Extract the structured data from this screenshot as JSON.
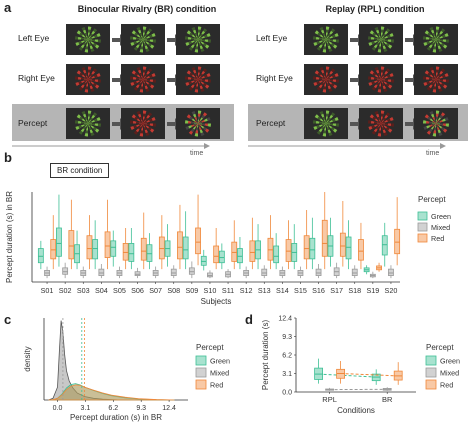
{
  "panel_a": {
    "label": "a",
    "br_title": "Binocular Rivalry (BR) condition",
    "rpl_title": "Replay (RPL) condition",
    "rows": [
      "Left Eye",
      "Right Eye",
      "Percept"
    ],
    "time_label": "time"
  },
  "panel_b": {
    "label": "b",
    "condition_box": "BR condition"
  },
  "panel_c": {
    "label": "c"
  },
  "panel_d": {
    "label": "d"
  },
  "colors": {
    "green": "#3dbf95",
    "mixed": "#9a9a9a",
    "red": "#f0883a",
    "band": "#b5b5b5"
  },
  "chart_data": [
    {
      "type": "box",
      "id": "b",
      "title": "",
      "xlabel": "Subjects",
      "ylabel": "Percept duration (s) in BR",
      "ylim": [
        0,
        12.4
      ],
      "yticks": [
        0,
        3.1,
        6.2,
        9.3,
        12.4
      ],
      "categories": [
        "S01",
        "S02",
        "S03",
        "S04",
        "S05",
        "S06",
        "S07",
        "S08",
        "S09",
        "S10",
        "S11",
        "S12",
        "S13",
        "S14",
        "S15",
        "S16",
        "S17",
        "S18",
        "S19",
        "S20"
      ],
      "legend": {
        "title": "Percept",
        "items": [
          "Green",
          "Mixed",
          "Red"
        ]
      },
      "series": [
        {
          "name": "Green",
          "boxes": [
            [
              1.0,
              1.5,
              2.0,
              2.6,
              3.2
            ],
            [
              1.2,
              2.0,
              3.0,
              4.2,
              6.8
            ],
            [
              1.0,
              1.5,
              2.2,
              2.9,
              4.0
            ],
            [
              1.0,
              1.8,
              2.6,
              3.3,
              4.8
            ],
            [
              1.2,
              2.0,
              2.7,
              3.2,
              4.0
            ],
            [
              1.0,
              1.6,
              2.2,
              3.0,
              4.2
            ],
            [
              1.0,
              1.6,
              2.2,
              2.9,
              3.8
            ],
            [
              1.2,
              2.0,
              2.6,
              3.2,
              4.5
            ],
            [
              1.0,
              1.8,
              2.5,
              3.5,
              5.5
            ],
            [
              0.9,
              1.3,
              1.6,
              2.0,
              2.5
            ],
            [
              1.0,
              1.5,
              1.9,
              2.4,
              3.0
            ],
            [
              1.0,
              1.5,
              2.0,
              2.6,
              3.5
            ],
            [
              1.0,
              1.8,
              2.5,
              3.2,
              4.5
            ],
            [
              1.0,
              1.5,
              2.0,
              2.8,
              3.8
            ],
            [
              1.0,
              1.6,
              2.3,
              3.0,
              4.5
            ],
            [
              1.0,
              1.8,
              2.5,
              3.4,
              5.0
            ],
            [
              1.2,
              2.0,
              2.8,
              3.6,
              5.0
            ],
            [
              1.0,
              1.8,
              2.7,
              3.5,
              4.8
            ],
            [
              0.6,
              0.8,
              0.95,
              1.1,
              1.3
            ],
            [
              1.2,
              2.1,
              2.9,
              3.6,
              4.6
            ]
          ]
        },
        {
          "name": "Mixed",
          "boxes": [
            [
              0.3,
              0.5,
              0.7,
              0.9,
              1.2
            ],
            [
              0.3,
              0.6,
              0.8,
              1.1,
              1.5
            ],
            [
              0.3,
              0.5,
              0.7,
              0.9,
              1.2
            ],
            [
              0.3,
              0.5,
              0.7,
              1.0,
              1.4
            ],
            [
              0.3,
              0.5,
              0.7,
              0.9,
              1.2
            ],
            [
              0.3,
              0.5,
              0.6,
              0.8,
              1.1
            ],
            [
              0.3,
              0.5,
              0.7,
              0.9,
              1.2
            ],
            [
              0.3,
              0.5,
              0.7,
              1.0,
              1.3
            ],
            [
              0.3,
              0.6,
              0.8,
              1.1,
              1.6
            ],
            [
              0.3,
              0.4,
              0.5,
              0.7,
              0.9
            ],
            [
              0.3,
              0.4,
              0.6,
              0.8,
              1.0
            ],
            [
              0.3,
              0.5,
              0.7,
              0.9,
              1.2
            ],
            [
              0.3,
              0.5,
              0.7,
              1.0,
              1.3
            ],
            [
              0.3,
              0.5,
              0.7,
              0.9,
              1.2
            ],
            [
              0.3,
              0.5,
              0.7,
              0.9,
              1.2
            ],
            [
              0.3,
              0.5,
              0.7,
              1.0,
              1.4
            ],
            [
              0.3,
              0.5,
              0.8,
              1.1,
              1.5
            ],
            [
              0.3,
              0.5,
              0.7,
              1.0,
              1.3
            ],
            [
              0.3,
              0.4,
              0.5,
              0.6,
              0.8
            ],
            [
              0.3,
              0.5,
              0.7,
              1.0,
              1.3
            ]
          ]
        },
        {
          "name": "Red",
          "boxes": [
            [
              1.0,
              1.8,
              2.5,
              3.3,
              5.2
            ],
            [
              1.0,
              1.8,
              2.8,
              4.0,
              6.4
            ],
            [
              1.0,
              1.8,
              2.6,
              3.6,
              5.2
            ],
            [
              1.0,
              1.9,
              2.8,
              3.9,
              6.4
            ],
            [
              1.0,
              1.7,
              2.3,
              3.0,
              4.2
            ],
            [
              1.0,
              1.7,
              2.4,
              3.4,
              5.4
            ],
            [
              1.0,
              1.8,
              2.6,
              3.5,
              5.2
            ],
            [
              1.0,
              1.8,
              2.7,
              3.9,
              6.0
            ],
            [
              1.3,
              2.2,
              3.1,
              4.2,
              6.8
            ],
            [
              1.0,
              1.5,
              2.0,
              2.8,
              4.2
            ],
            [
              1.0,
              1.6,
              2.3,
              3.1,
              4.8
            ],
            [
              1.0,
              1.6,
              2.3,
              3.2,
              5.0
            ],
            [
              1.0,
              1.7,
              2.5,
              3.4,
              5.2
            ],
            [
              1.0,
              1.6,
              2.4,
              3.3,
              4.8
            ],
            [
              1.0,
              1.8,
              2.6,
              3.6,
              5.6
            ],
            [
              1.0,
              2.0,
              3.0,
              4.8,
              7.0
            ],
            [
              1.2,
              2.0,
              2.8,
              3.8,
              6.3
            ],
            [
              1.0,
              1.7,
              2.4,
              3.3,
              4.6
            ],
            [
              0.8,
              0.95,
              1.1,
              1.25,
              1.5
            ],
            [
              1.3,
              2.2,
              3.1,
              4.1,
              6.6
            ]
          ]
        }
      ]
    },
    {
      "type": "area",
      "id": "c",
      "title": "",
      "xlabel": "Percept duration (s) in BR",
      "ylabel": "density",
      "xlim": [
        -1.5,
        14.5
      ],
      "xticks": [
        0.0,
        3.1,
        6.2,
        9.3,
        12.4
      ],
      "xtick_labels": [
        "0.0",
        "3.1",
        "6.2",
        "9.3",
        "12.4"
      ],
      "legend": {
        "title": "Percept",
        "items": [
          "Green",
          "Mixed",
          "Red"
        ]
      },
      "mean_lines": {
        "Mixed": 0.6,
        "Green": 2.7,
        "Red": 3.0
      },
      "series": [
        {
          "name": "Mixed",
          "x": [
            -1.0,
            -0.5,
            0.0,
            0.2,
            0.4,
            0.6,
            0.8,
            1.0,
            1.3,
            1.7,
            2.2,
            3.0,
            4.0,
            5.0,
            7.0,
            9.0
          ],
          "y": [
            0.0,
            0.02,
            0.15,
            0.55,
            0.92,
            0.78,
            0.52,
            0.34,
            0.22,
            0.14,
            0.08,
            0.04,
            0.02,
            0.01,
            0.0,
            0.0
          ]
        },
        {
          "name": "Green",
          "x": [
            -1.0,
            -0.5,
            0.0,
            0.5,
            1.0,
            1.5,
            2.0,
            2.5,
            3.0,
            4.0,
            5.0,
            6.0,
            7.5,
            9.0,
            11.0,
            13.0
          ],
          "y": [
            0.0,
            0.005,
            0.02,
            0.07,
            0.14,
            0.18,
            0.19,
            0.175,
            0.15,
            0.11,
            0.075,
            0.05,
            0.025,
            0.012,
            0.004,
            0.0
          ]
        },
        {
          "name": "Red",
          "x": [
            -1.0,
            -0.5,
            0.0,
            0.5,
            1.0,
            1.5,
            2.0,
            2.5,
            3.0,
            4.0,
            5.0,
            6.0,
            7.5,
            9.0,
            11.0,
            13.0
          ],
          "y": [
            0.0,
            0.005,
            0.02,
            0.06,
            0.12,
            0.16,
            0.175,
            0.17,
            0.15,
            0.115,
            0.082,
            0.057,
            0.032,
            0.016,
            0.006,
            0.0
          ]
        }
      ]
    },
    {
      "type": "box",
      "id": "d",
      "title": "",
      "xlabel": "Conditions",
      "ylabel": "Percept duration (s)",
      "ylim": [
        0,
        12.4
      ],
      "yticks": [
        0.0,
        3.1,
        6.2,
        9.3,
        12.4
      ],
      "ytick_labels": [
        "0.0",
        "3.1",
        "6.2",
        "9.3",
        "12.4"
      ],
      "categories": [
        "RPL",
        "BR"
      ],
      "legend": {
        "title": "Percept",
        "items": [
          "Green",
          "Mixed",
          "Red"
        ]
      },
      "series": [
        {
          "name": "Green",
          "boxes": [
            [
              1.4,
              2.1,
              3.0,
              4.0,
              5.6
            ],
            [
              1.2,
              1.9,
              2.5,
              3.0,
              3.8
            ]
          ]
        },
        {
          "name": "Mixed",
          "boxes": [
            [
              0.2,
              0.3,
              0.4,
              0.5,
              0.7
            ],
            [
              0.2,
              0.3,
              0.45,
              0.6,
              0.8
            ]
          ]
        },
        {
          "name": "Red",
          "boxes": [
            [
              1.4,
              2.3,
              3.1,
              3.8,
              5.2
            ],
            [
              1.2,
              2.0,
              2.7,
              3.5,
              5.0
            ]
          ]
        }
      ]
    }
  ]
}
